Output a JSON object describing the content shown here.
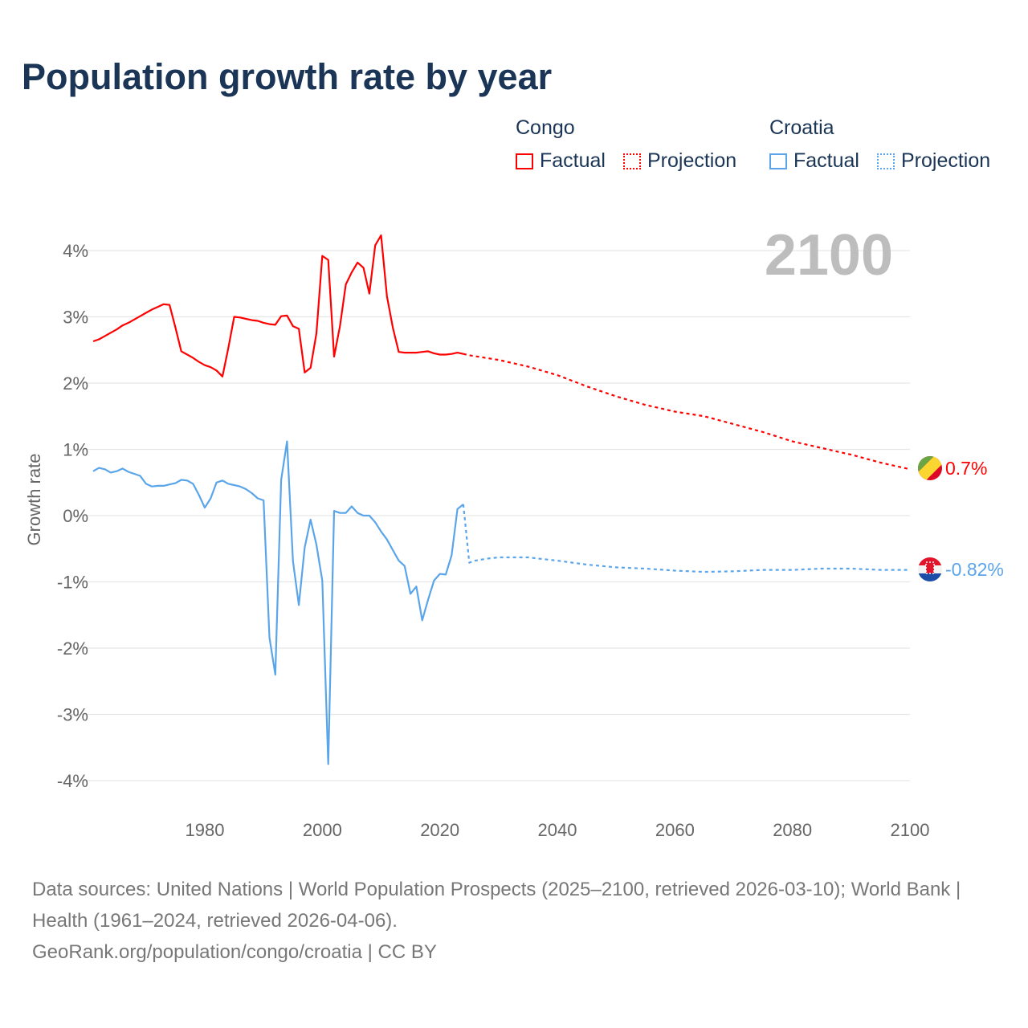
{
  "title": "Population growth rate by year",
  "legend": {
    "groups": [
      {
        "name": "Congo",
        "factual": "Factual",
        "projection": "Projection",
        "color": "#ff0000"
      },
      {
        "name": "Croatia",
        "factual": "Factual",
        "projection": "Projection",
        "color": "#5aa5ea"
      }
    ]
  },
  "year_display": "2100",
  "end_labels": {
    "congo": "0.7%",
    "croatia": "-0.82%"
  },
  "source_lines": [
    "Data sources: United Nations | World Population Prospects (2025–2100, retrieved 2026-03-10); World Bank | Health (1961–2024, retrieved 2026-04-06).",
    "GeoRank.org/population/congo/croatia | CC BY"
  ],
  "chart_data": {
    "type": "line",
    "title": "Population growth rate by year",
    "xlabel": "",
    "ylabel": "Growth rate",
    "xlim": [
      1961,
      2100
    ],
    "ylim": [
      -4.5,
      4.5
    ],
    "x_ticks": [
      1980,
      2000,
      2020,
      2040,
      2060,
      2080,
      2100
    ],
    "y_ticks": [
      {
        "v": 4,
        "label": "4%"
      },
      {
        "v": 3,
        "label": "3%"
      },
      {
        "v": 2,
        "label": "2%"
      },
      {
        "v": 1,
        "label": "1%"
      },
      {
        "v": 0,
        "label": "0%"
      },
      {
        "v": -1,
        "label": "-1%"
      },
      {
        "v": -2,
        "label": "-2%"
      },
      {
        "v": -3,
        "label": "-3%"
      },
      {
        "v": -4,
        "label": "-4%"
      }
    ],
    "grid": true,
    "series": [
      {
        "name": "Congo Factual",
        "color": "#ff0000",
        "dashed": false,
        "start_year": 1961,
        "values": [
          2.63,
          2.66,
          2.71,
          2.76,
          2.81,
          2.87,
          2.91,
          2.96,
          3.01,
          3.06,
          3.11,
          3.15,
          3.19,
          3.18,
          2.84,
          2.48,
          2.43,
          2.38,
          2.32,
          2.27,
          2.24,
          2.19,
          2.1,
          2.53,
          3.0,
          2.99,
          2.97,
          2.95,
          2.94,
          2.91,
          2.89,
          2.88,
          3.01,
          3.02,
          2.86,
          2.82,
          2.16,
          2.23,
          2.75,
          3.92,
          3.86,
          2.4,
          2.86,
          3.49,
          3.67,
          3.82,
          3.74,
          3.35,
          4.08,
          4.23,
          3.31,
          2.84,
          2.47,
          2.46,
          2.46,
          2.46,
          2.47,
          2.48,
          2.45,
          2.43,
          2.43,
          2.44,
          2.46,
          2.44
        ]
      },
      {
        "name": "Congo Projection",
        "color": "#ff0000",
        "dashed": true,
        "x": [
          2024,
          2025,
          2030,
          2035,
          2040,
          2045,
          2050,
          2055,
          2060,
          2065,
          2070,
          2075,
          2080,
          2085,
          2090,
          2095,
          2100
        ],
        "values": [
          2.44,
          2.42,
          2.35,
          2.25,
          2.12,
          1.95,
          1.8,
          1.67,
          1.57,
          1.5,
          1.38,
          1.26,
          1.12,
          1.02,
          0.92,
          0.8,
          0.7
        ]
      },
      {
        "name": "Croatia Factual",
        "color": "#5aa5ea",
        "dashed": false,
        "start_year": 1961,
        "values": [
          0.67,
          0.72,
          0.7,
          0.65,
          0.67,
          0.71,
          0.66,
          0.63,
          0.6,
          0.48,
          0.44,
          0.45,
          0.45,
          0.47,
          0.49,
          0.54,
          0.53,
          0.48,
          0.31,
          0.12,
          0.26,
          0.5,
          0.53,
          0.48,
          0.46,
          0.44,
          0.4,
          0.34,
          0.26,
          0.23,
          -1.84,
          -2.4,
          0.54,
          1.12,
          -0.69,
          -1.35,
          -0.48,
          -0.06,
          -0.44,
          -0.98,
          -3.75,
          0.07,
          0.04,
          0.04,
          0.14,
          0.04,
          0.0,
          0.0,
          -0.1,
          -0.24,
          -0.36,
          -0.52,
          -0.68,
          -0.76,
          -1.18,
          -1.07,
          -1.58,
          -1.27,
          -0.98,
          -0.88,
          -0.89,
          -0.6,
          0.1,
          0.17
        ]
      },
      {
        "name": "Croatia Projection",
        "color": "#5aa5ea",
        "dashed": true,
        "x": [
          2024,
          2025,
          2026,
          2028,
          2030,
          2035,
          2040,
          2045,
          2050,
          2055,
          2060,
          2065,
          2070,
          2075,
          2080,
          2085,
          2090,
          2095,
          2100
        ],
        "values": [
          0.17,
          -0.71,
          -0.68,
          -0.65,
          -0.63,
          -0.63,
          -0.68,
          -0.74,
          -0.78,
          -0.8,
          -0.83,
          -0.85,
          -0.84,
          -0.82,
          -0.82,
          -0.8,
          -0.8,
          -0.82,
          -0.82
        ]
      }
    ]
  }
}
